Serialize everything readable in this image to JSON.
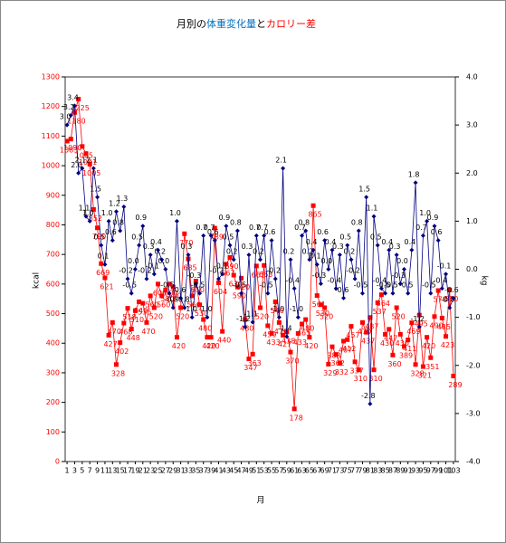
{
  "chart_data": {
    "type": "line",
    "title_parts": [
      "月別の",
      "体重変化量",
      "と",
      "カロリー差"
    ],
    "title_colors": [
      "#000000",
      "#0070c0",
      "#000000",
      "#ff0000"
    ],
    "x_label": "月",
    "y_label": "kcal",
    "y2_label": "kg",
    "x": [
      1,
      2,
      3,
      4,
      5,
      6,
      7,
      8,
      9,
      10,
      11,
      12,
      13,
      14,
      15,
      16,
      17,
      18,
      19,
      20,
      21,
      22,
      23,
      24,
      25,
      26,
      27,
      28,
      29,
      30,
      31,
      32,
      33,
      34,
      35,
      36,
      37,
      38,
      39,
      40,
      41,
      42,
      43,
      44,
      45,
      46,
      47,
      48,
      49,
      50,
      51,
      52,
      53,
      54,
      55,
      56,
      57,
      58,
      59,
      60,
      61,
      62,
      63,
      64,
      65,
      66,
      67,
      68,
      69,
      70,
      71,
      72,
      73,
      74,
      75,
      76,
      77,
      78,
      79,
      80,
      81,
      82,
      83,
      84,
      85,
      86,
      87,
      88,
      89,
      90,
      91,
      92,
      93,
      94,
      95,
      96,
      97,
      98,
      99,
      100,
      101,
      102,
      103
    ],
    "xlim": [
      0.5,
      103.5
    ],
    "xticks": [
      1,
      3,
      5,
      7,
      9,
      11,
      13,
      15,
      17,
      19,
      21,
      23,
      25,
      27,
      29,
      31,
      33,
      35,
      37,
      39,
      41,
      43,
      45,
      47,
      49,
      51,
      53,
      55,
      57,
      59,
      61,
      63,
      65,
      67,
      69,
      71,
      73,
      75,
      77,
      79,
      81,
      83,
      85,
      87,
      89,
      91,
      93,
      95,
      97,
      99,
      101,
      103
    ],
    "ylim": [
      0,
      1300
    ],
    "yticks": [
      0,
      100,
      200,
      300,
      400,
      500,
      600,
      700,
      800,
      900,
      1000,
      1100,
      1200,
      1300
    ],
    "y2lim": [
      -4,
      4
    ],
    "y2ticks": [
      {
        "value": -4,
        "label": "-4.0"
      },
      {
        "value": -3,
        "label": "-3.0"
      },
      {
        "value": -2,
        "label": "-2.0"
      },
      {
        "value": -1,
        "label": "-1.0"
      },
      {
        "value": 0,
        "label": "0.0"
      },
      {
        "value": 1,
        "label": "1.0"
      },
      {
        "value": 2,
        "label": "2.0"
      },
      {
        "value": 3,
        "label": "3.0"
      },
      {
        "value": 4,
        "label": "4.0"
      }
    ],
    "series": [
      {
        "color": "#ff0000",
        "marker": "square",
        "values": [
          1083,
          1090,
          1180,
          1225,
          1065,
          1041,
          1005,
          852,
          790,
          669,
          621,
          427,
          470,
          328,
          402,
          468,
          518,
          448,
          510,
          540,
          535,
          470,
          560,
          520,
          600,
          560,
          580,
          600,
          590,
          420,
          520,
          770,
          685,
          560,
          610,
          530,
          480,
          420,
          420,
          789,
          604,
          440,
          667,
          690,
          630,
          590,
          620,
          480,
          347,
          363,
          661,
          520,
          663,
          459,
          433,
          540,
          470,
          427,
          438,
          370,
          178,
          433,
          465,
          480,
          420,
          865,
          561,
          530,
          520,
          329,
          388,
          362,
          332,
          407,
          412,
          457,
          337,
          310,
          470,
          437,
          487,
          310,
          537,
          564,
          430,
          447,
          360,
          520,
          430,
          389,
          411,
          469,
          328,
          495,
          321,
          420,
          351,
          490,
          578,
          485,
          423,
          580,
          289
        ]
      },
      {
        "color": "#000080",
        "marker": "diamond",
        "axis": "y2",
        "values": [
          3.0,
          3.2,
          3.4,
          2.0,
          2.1,
          1.1,
          1.0,
          2.1,
          1.5,
          0.5,
          0.1,
          1.0,
          0.6,
          1.2,
          0.8,
          1.3,
          -0.2,
          -0.5,
          0.0,
          0.5,
          0.9,
          -0.2,
          0.3,
          -0.1,
          0.4,
          0.2,
          0.0,
          -0.5,
          -0.8,
          1.0,
          -0.6,
          -0.8,
          0.3,
          -1.0,
          -0.3,
          -0.5,
          0.7,
          -1.0,
          0.7,
          0.6,
          -0.2,
          -0.1,
          0.9,
          0.5,
          0.2,
          0.8,
          -0.5,
          -1.2,
          0.3,
          -1.1,
          0.7,
          0.2,
          0.7,
          -0.5,
          0.6,
          -0.2,
          -1.0,
          2.1,
          -1.4,
          0.2,
          -0.4,
          -1.0,
          0.7,
          0.8,
          0.2,
          0.4,
          0.1,
          -0.3,
          0.6,
          0.0,
          0.4,
          -0.4,
          0.3,
          -0.6,
          0.5,
          0.2,
          -0.2,
          0.8,
          -0.5,
          1.5,
          -2.8,
          1.1,
          0.5,
          -0.4,
          -0.5,
          0.4,
          -0.5,
          0.3,
          -0.3,
          0.0,
          -0.5,
          0.4,
          1.8,
          -1.2,
          0.7,
          1.0,
          -0.5,
          0.9,
          0.6,
          -0.4,
          -0.1,
          -0.8,
          -0.6
        ],
        "value_labels": [
          "3.0",
          "3.2",
          "3.4",
          "2.0",
          "2.1",
          "1.1",
          "1.0",
          "2.1",
          "1.5",
          "0.5",
          "0.1",
          "1.0",
          "0.6",
          "1.2",
          "0.8",
          "1.3",
          "-0.2",
          "-0.5",
          "0.0",
          "0.5",
          "0.9",
          "-0.2",
          "0.3",
          "-0.1",
          "0.4",
          "0.2",
          "0.0",
          "-0.5",
          "-0.8",
          "1.0",
          "-0.6",
          "-0.8",
          "0.3",
          "-1.0",
          "-0.3",
          "-0.5",
          "0.7",
          "-1.0",
          "0.7",
          "0.6",
          "-0.2",
          "-0.1",
          "0.9",
          "0.5",
          "0.2",
          "0.8",
          "-0.5",
          "-1.2",
          "0.3",
          "-1.1",
          "0.7",
          "0.2",
          "0.7",
          "-0.5",
          "0.6",
          "-0.2",
          "-1.0",
          "2.1",
          "-1.4",
          "0.2",
          "-0.4",
          "-1.0",
          "0.7",
          "0.8",
          "0.2",
          "0.4",
          "0.1",
          "-0.3",
          "0.6",
          "0.0",
          "0.4",
          "-0.4",
          "0.3",
          "-0.6",
          "0.5",
          "0.2",
          "-0.2",
          "0.8",
          "-0.5",
          "1.5",
          "-2.8",
          "1.1",
          "0.5",
          "-0.4",
          "-0.5",
          "0.4",
          "-0.5",
          "0.3",
          "-0.3",
          "0.0",
          "-0.5",
          "0.4",
          "1.8",
          "-1.2",
          "0.7",
          "1.0",
          "-0.5",
          "0.9",
          "0.6",
          "-0.4",
          "-0.1",
          "-0.8",
          "-0.6"
        ]
      }
    ]
  }
}
